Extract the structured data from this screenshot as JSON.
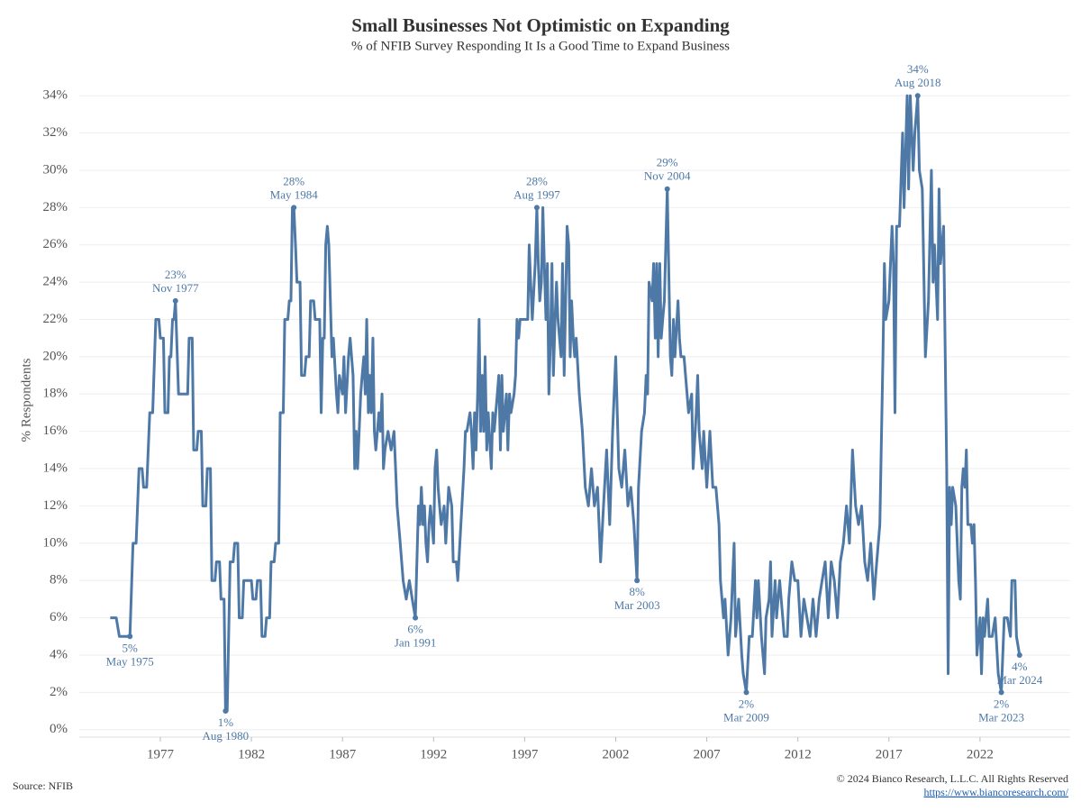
{
  "chart_data": {
    "type": "line",
    "title": "Small Businesses Not Optimistic on Expanding",
    "subtitle": "% of NFIB Survey Responding It Is a Good Time to Expand Business",
    "y_label": "% Respondents",
    "color": "#4e79a7",
    "grid": true,
    "xlim": [
      1972.55,
      2026.95
    ],
    "xticks": [
      1977,
      1982,
      1987,
      1992,
      1997,
      2002,
      2007,
      2012,
      2017,
      2022
    ],
    "ylim": [
      -0.4,
      35.8
    ],
    "yticks": [
      {
        "value": 0,
        "label": "0%"
      },
      {
        "value": 2,
        "label": "2%"
      },
      {
        "value": 4,
        "label": "4%"
      },
      {
        "value": 6,
        "label": "6%"
      },
      {
        "value": 8,
        "label": "8%"
      },
      {
        "value": 10,
        "label": "10%"
      },
      {
        "value": 12,
        "label": "12%"
      },
      {
        "value": 14,
        "label": "14%"
      },
      {
        "value": 16,
        "label": "16%"
      },
      {
        "value": 18,
        "label": "18%"
      },
      {
        "value": 20,
        "label": "20%"
      },
      {
        "value": 22,
        "label": "22%"
      },
      {
        "value": 24,
        "label": "24%"
      },
      {
        "value": 26,
        "label": "26%"
      },
      {
        "value": 28,
        "label": "28%"
      },
      {
        "value": 30,
        "label": "30%"
      },
      {
        "value": 32,
        "label": "32%"
      },
      {
        "value": 34,
        "label": "34%"
      }
    ],
    "x": [
      1974.25,
      1974.58,
      1974.75,
      1975.33,
      1975.5,
      1975.67,
      1975.83,
      1976.0,
      1976.08,
      1976.25,
      1976.42,
      1976.58,
      1976.75,
      1976.92,
      1977.0,
      1977.17,
      1977.25,
      1977.42,
      1977.5,
      1977.58,
      1977.67,
      1977.75,
      1977.83,
      1978.0,
      1978.5,
      1978.58,
      1978.75,
      1978.83,
      1979.0,
      1979.08,
      1979.25,
      1979.33,
      1979.5,
      1979.58,
      1979.75,
      1979.83,
      1980.0,
      1980.08,
      1980.25,
      1980.33,
      1980.5,
      1980.58,
      1980.67,
      1980.83,
      1981.0,
      1981.08,
      1981.25,
      1981.33,
      1981.5,
      1981.58,
      1982.0,
      1982.08,
      1982.25,
      1982.33,
      1982.5,
      1982.58,
      1982.75,
      1982.83,
      1983.0,
      1983.08,
      1983.25,
      1983.33,
      1983.5,
      1983.58,
      1983.75,
      1983.83,
      1984.0,
      1984.08,
      1984.17,
      1984.25,
      1984.33,
      1984.42,
      1984.5,
      1984.67,
      1984.75,
      1984.92,
      1985.0,
      1985.17,
      1985.25,
      1985.42,
      1985.5,
      1985.75,
      1985.83,
      1985.92,
      1986.0,
      1986.08,
      1986.17,
      1986.25,
      1986.42,
      1986.5,
      1986.67,
      1986.75,
      1986.83,
      1987.0,
      1987.08,
      1987.17,
      1987.33,
      1987.42,
      1987.58,
      1987.67,
      1987.75,
      1987.83,
      1988.0,
      1988.08,
      1988.17,
      1988.25,
      1988.33,
      1988.42,
      1988.5,
      1988.58,
      1988.67,
      1988.75,
      1988.83,
      1989.0,
      1989.08,
      1989.17,
      1989.25,
      1989.33,
      1989.5,
      1989.67,
      1989.83,
      1990.0,
      1990.17,
      1990.33,
      1990.5,
      1990.67,
      1990.83,
      1991.0,
      1991.17,
      1991.25,
      1991.33,
      1991.42,
      1991.5,
      1991.58,
      1991.67,
      1991.75,
      1991.83,
      1992.0,
      1992.08,
      1992.17,
      1992.25,
      1992.33,
      1992.42,
      1992.58,
      1992.67,
      1992.83,
      1993.0,
      1993.08,
      1993.25,
      1993.33,
      1993.5,
      1993.67,
      1993.75,
      1993.83,
      1994.0,
      1994.08,
      1994.17,
      1994.25,
      1994.33,
      1994.42,
      1994.5,
      1994.58,
      1994.67,
      1994.75,
      1994.83,
      1994.92,
      1995.0,
      1995.17,
      1995.25,
      1995.33,
      1995.5,
      1995.58,
      1995.67,
      1995.75,
      1995.83,
      1996.0,
      1996.08,
      1996.17,
      1996.25,
      1996.42,
      1996.5,
      1996.58,
      1996.67,
      1996.75,
      1997.0,
      1997.17,
      1997.25,
      1997.33,
      1997.42,
      1997.58,
      1997.67,
      1997.75,
      1997.83,
      1997.92,
      1998.0,
      1998.08,
      1998.17,
      1998.25,
      1998.33,
      1998.42,
      1998.5,
      1998.58,
      1998.67,
      1998.75,
      1998.83,
      1999.0,
      1999.08,
      1999.17,
      1999.25,
      1999.33,
      1999.42,
      1999.5,
      1999.58,
      1999.67,
      1999.75,
      1999.83,
      2000.0,
      2000.17,
      2000.33,
      2000.5,
      2000.67,
      2000.83,
      2001.0,
      2001.17,
      2001.33,
      2001.5,
      2001.67,
      2001.83,
      2002.0,
      2002.17,
      2002.33,
      2002.5,
      2002.67,
      2002.83,
      2003.0,
      2003.17,
      2003.25,
      2003.42,
      2003.58,
      2003.67,
      2003.75,
      2003.83,
      2004.0,
      2004.08,
      2004.17,
      2004.25,
      2004.33,
      2004.42,
      2004.5,
      2004.58,
      2004.67,
      2004.83,
      2005.0,
      2005.08,
      2005.17,
      2005.25,
      2005.42,
      2005.5,
      2005.58,
      2005.75,
      2006.0,
      2006.17,
      2006.25,
      2006.42,
      2006.5,
      2006.58,
      2006.75,
      2006.83,
      2007.0,
      2007.17,
      2007.33,
      2007.5,
      2007.67,
      2007.75,
      2007.92,
      2008.0,
      2008.17,
      2008.33,
      2008.5,
      2008.58,
      2008.75,
      2008.92,
      2009.0,
      2009.17,
      2009.33,
      2009.5,
      2009.67,
      2009.75,
      2009.83,
      2010.0,
      2010.17,
      2010.25,
      2010.42,
      2010.5,
      2010.58,
      2010.75,
      2010.83,
      2011.0,
      2011.17,
      2011.25,
      2011.42,
      2011.5,
      2011.67,
      2011.83,
      2012.0,
      2012.17,
      2012.33,
      2012.5,
      2012.67,
      2012.83,
      2013.0,
      2013.17,
      2013.33,
      2013.5,
      2013.67,
      2013.83,
      2014.0,
      2014.17,
      2014.33,
      2014.5,
      2014.67,
      2014.83,
      2015.0,
      2015.17,
      2015.33,
      2015.5,
      2015.67,
      2015.83,
      2016.0,
      2016.17,
      2016.33,
      2016.5,
      2016.67,
      2016.75,
      2016.83,
      2017.0,
      2017.17,
      2017.25,
      2017.33,
      2017.42,
      2017.58,
      2017.75,
      2017.83,
      2018.0,
      2018.08,
      2018.17,
      2018.33,
      2018.42,
      2018.58,
      2018.67,
      2018.83,
      2019.0,
      2019.17,
      2019.33,
      2019.42,
      2019.5,
      2019.67,
      2019.75,
      2019.83,
      2020.0,
      2020.17,
      2020.25,
      2020.33,
      2020.42,
      2020.5,
      2020.67,
      2020.83,
      2020.92,
      2021.0,
      2021.08,
      2021.17,
      2021.25,
      2021.33,
      2021.5,
      2021.58,
      2021.67,
      2021.75,
      2021.83,
      2022.0,
      2022.08,
      2022.17,
      2022.25,
      2022.33,
      2022.42,
      2022.5,
      2022.67,
      2022.83,
      2023.0,
      2023.17,
      2023.25,
      2023.33,
      2023.5,
      2023.67,
      2023.75,
      2023.92,
      2024.0,
      2024.17
    ],
    "values": [
      6,
      6,
      5,
      5,
      10,
      10,
      14,
      14,
      13,
      13,
      17,
      17,
      22,
      22,
      21,
      21,
      17,
      17,
      20,
      20,
      22,
      22,
      23,
      18,
      18,
      21,
      21,
      15,
      15,
      16,
      16,
      12,
      12,
      14,
      14,
      8,
      8,
      9,
      9,
      7,
      7,
      1,
      1,
      9,
      9,
      10,
      10,
      6,
      6,
      8,
      8,
      7,
      7,
      8,
      8,
      5,
      5,
      6,
      6,
      9,
      9,
      10,
      10,
      17,
      17,
      22,
      22,
      23,
      23,
      28,
      28,
      26,
      24,
      24,
      19,
      19,
      20,
      20,
      23,
      23,
      22,
      22,
      17,
      21,
      21,
      26,
      27,
      26,
      20,
      21,
      18,
      17,
      19,
      18,
      20,
      17,
      20,
      21,
      19,
      14,
      16,
      14,
      18,
      19,
      20,
      18,
      22,
      17,
      19,
      17,
      21,
      16,
      15,
      17,
      16,
      18,
      14,
      15,
      16,
      15,
      16,
      12,
      10,
      8,
      7,
      8,
      7,
      6,
      12,
      11,
      13,
      11,
      12,
      10,
      9,
      11,
      12,
      10,
      14,
      15,
      13,
      12,
      11,
      12,
      10,
      13,
      12,
      9,
      9,
      8,
      11,
      14,
      16,
      16,
      17,
      16,
      14,
      17,
      15,
      18,
      22,
      16,
      19,
      16,
      20,
      15,
      17,
      14,
      17,
      16,
      18,
      19,
      15,
      19,
      16,
      18,
      15,
      18,
      17,
      18,
      19,
      22,
      21,
      22,
      22,
      22,
      26,
      24,
      22,
      25,
      28,
      25,
      23,
      24,
      28,
      25,
      22,
      25,
      18,
      21,
      25,
      19,
      22,
      24,
      22,
      20,
      25,
      19,
      23,
      27,
      26,
      20,
      23,
      21,
      20,
      21,
      18,
      16,
      13,
      12,
      14,
      12,
      13,
      9,
      12,
      15,
      11,
      16,
      20,
      14,
      13,
      15,
      12,
      13,
      11,
      8,
      13,
      16,
      17,
      19,
      18,
      24,
      23,
      25,
      21,
      25,
      20,
      25,
      21,
      22,
      23,
      29,
      20,
      19,
      22,
      20,
      23,
      21,
      20,
      20,
      17,
      18,
      14,
      17,
      19,
      16,
      14,
      16,
      13,
      16,
      13,
      13,
      11,
      8,
      6,
      7,
      4,
      6,
      10,
      5,
      7,
      4,
      3,
      2,
      5,
      5,
      8,
      6,
      8,
      5,
      3,
      6,
      7,
      9,
      5,
      8,
      6,
      8,
      6,
      5,
      5,
      7,
      9,
      8,
      8,
      5,
      7,
      6,
      5,
      7,
      5,
      7,
      8,
      9,
      6,
      9,
      8,
      6,
      9,
      10,
      12,
      10,
      15,
      12,
      11,
      12,
      9,
      8,
      10,
      7,
      9,
      11,
      20,
      25,
      22,
      23,
      27,
      25,
      17,
      27,
      27,
      32,
      28,
      34,
      29,
      34,
      30,
      32,
      34,
      30,
      29,
      20,
      23,
      30,
      24,
      26,
      22,
      29,
      25,
      27,
      14,
      3,
      13,
      11,
      13,
      12,
      8,
      7,
      13,
      14,
      13,
      15,
      11,
      11,
      10,
      11,
      8,
      4,
      6,
      3,
      6,
      5,
      6,
      7,
      5,
      5,
      6,
      3,
      2,
      4,
      6,
      6,
      5,
      8,
      8,
      5,
      4
    ],
    "annotations": [
      {
        "x": 1975.33,
        "value": 5,
        "value_label": "5%",
        "label": "May 1975"
      },
      {
        "x": 1977.83,
        "value": 23,
        "value_label": "23%",
        "label": "Nov 1977"
      },
      {
        "x": 1980.58,
        "value": 1,
        "value_label": "1%",
        "label": "Aug 1980"
      },
      {
        "x": 1984.33,
        "value": 28,
        "value_label": "28%",
        "label": "May 1984"
      },
      {
        "x": 1991.0,
        "value": 6,
        "value_label": "6%",
        "label": "Jan 1991"
      },
      {
        "x": 1997.67,
        "value": 28,
        "value_label": "28%",
        "label": "Aug 1997"
      },
      {
        "x": 2003.17,
        "value": 8,
        "value_label": "8%",
        "label": "Mar 2003"
      },
      {
        "x": 2004.83,
        "value": 29,
        "value_label": "29%",
        "label": "Nov 2004"
      },
      {
        "x": 2009.17,
        "value": 2,
        "value_label": "2%",
        "label": "Mar 2009"
      },
      {
        "x": 2018.58,
        "value": 34,
        "value_label": "34%",
        "label": "Aug 2018"
      },
      {
        "x": 2023.17,
        "value": 2,
        "value_label": "2%",
        "label": "Mar 2023"
      },
      {
        "x": 2024.17,
        "value": 4,
        "value_label": "4%",
        "label": "Mar 2024"
      }
    ]
  },
  "footer": {
    "source": "Source: NFIB",
    "copyright": "© 2024 Bianco Research, L.L.C. All Rights Reserved",
    "url": "https://www.biancoresearch.com/"
  }
}
